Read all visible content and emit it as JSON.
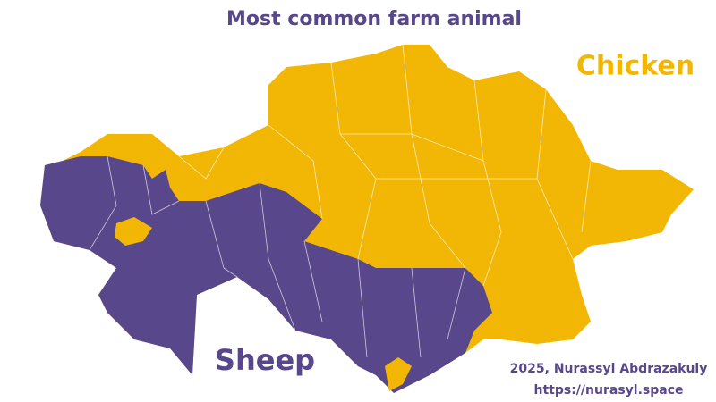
{
  "title": "Most common farm animal",
  "legend": [
    {
      "label": "Chicken",
      "color": "#f2b705"
    },
    {
      "label": "Sheep",
      "color": "#58478a"
    }
  ],
  "credit": [
    "2025, Nurassyl Abdrazakuly",
    "https://nurasyl.space"
  ]
}
